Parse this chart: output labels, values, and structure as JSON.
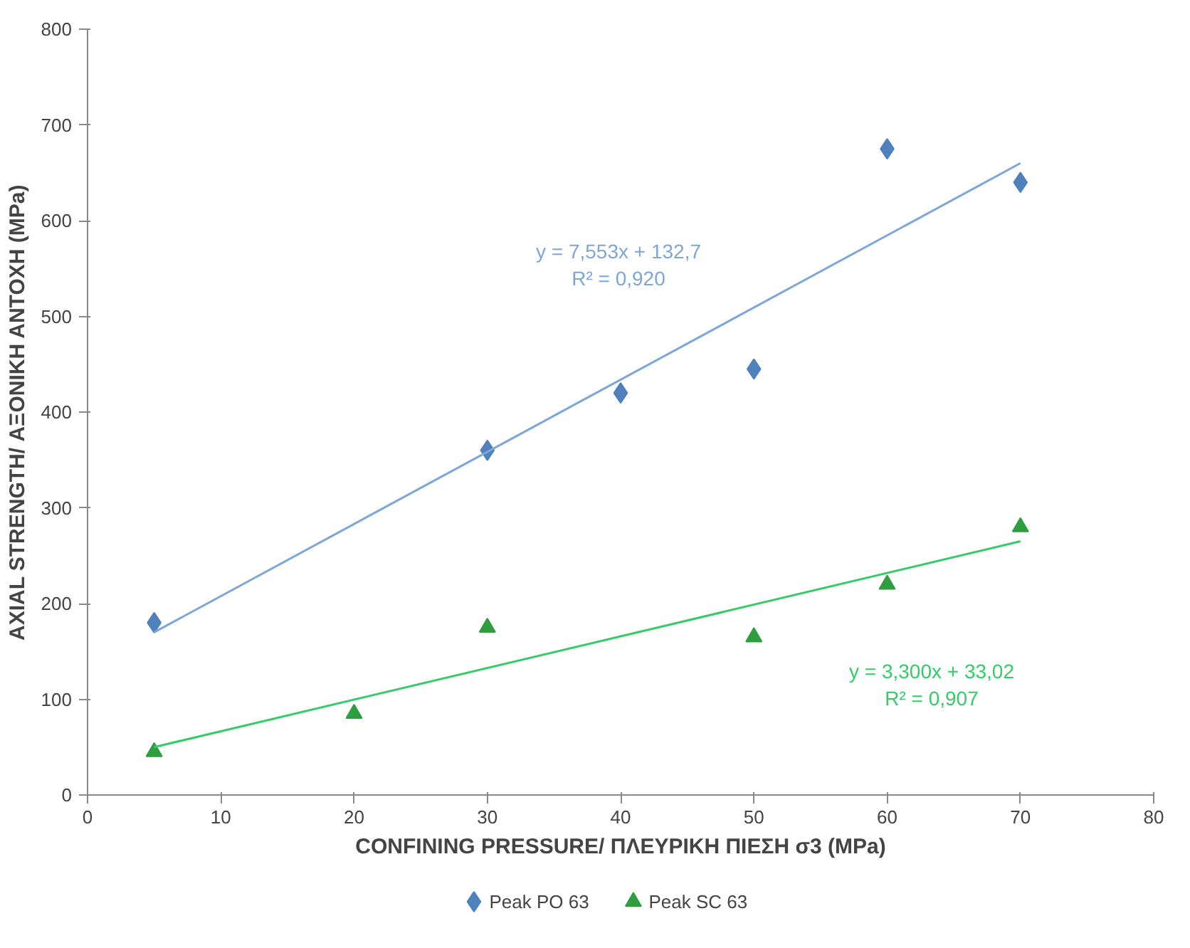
{
  "chart_data": {
    "type": "scatter",
    "xlabel": "CONFINING PRESSURE/ ΠΛΕΥΡΙΚΗ ΠΙΕΣΗ σ3 (MPa)",
    "ylabel": "AXIAL STRENGTH/ ΑΞΟΝΙΚΗ ΑΝΤΟΧΗ (MPa)",
    "xlim": [
      0,
      80
    ],
    "xticks": [
      0,
      10,
      20,
      30,
      40,
      50,
      60,
      70,
      80
    ],
    "ylim": [
      0,
      800
    ],
    "yticks": [
      0,
      100,
      200,
      300,
      400,
      500,
      600,
      700,
      800
    ],
    "grid": false,
    "legend": "bottom",
    "series": [
      {
        "name": "Peak PO 63",
        "color": "#4f81bd",
        "marker": "diamond",
        "x": [
          5,
          30,
          40,
          50,
          60,
          70
        ],
        "values": [
          180,
          360,
          420,
          445,
          675,
          640
        ]
      },
      {
        "name": "Peak SC 63",
        "color": "#2e9e3e",
        "marker": "triangle",
        "x": [
          5,
          20,
          30,
          50,
          60,
          70
        ],
        "values": [
          45,
          85,
          175,
          165,
          220,
          280
        ]
      },
      {
        "type": "line",
        "color": "#7ea6d8",
        "x": [
          5,
          70
        ],
        "values": [
          170,
          660
        ]
      },
      {
        "type": "line",
        "color": "#33cc66",
        "x": [
          5,
          70
        ],
        "values": [
          50,
          265
        ]
      }
    ],
    "annotations": [
      "y = 7,553x + 132,7\nR² = 0,920",
      "y = 3,300x + 33,02\nR² = 0,907"
    ]
  }
}
